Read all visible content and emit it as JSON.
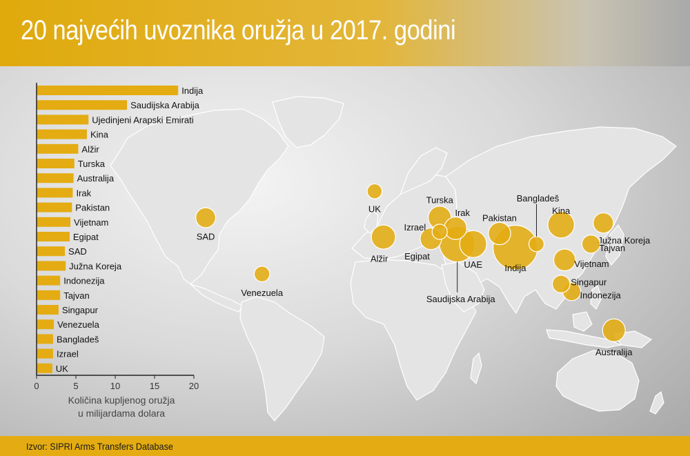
{
  "title": "20 najvećih uvoznika oružja u 2017. godini",
  "source": "Izvor: SIPRI Arms Transfers Database",
  "colors": {
    "accent": "#e4ac12",
    "bubble": "#e4ac12",
    "land": "#e4e4e4",
    "border": "#ffffff"
  },
  "chart_data": [
    {
      "type": "bar",
      "orientation": "horizontal",
      "categories": [
        "Indija",
        "Saudijska Arabija",
        "Ujedinjeni Arapski Emirati",
        "Kina",
        "Alžir",
        "Turska",
        "Australija",
        "Irak",
        "Pakistan",
        "Vijetnam",
        "Egipat",
        "SAD",
        "Južna Koreja",
        "Indonezija",
        "Tajvan",
        "Singapur",
        "Venezuela",
        "Bangladeš",
        "Izrael",
        "UK"
      ],
      "values": [
        18.0,
        11.5,
        6.6,
        6.4,
        5.3,
        4.8,
        4.7,
        4.6,
        4.5,
        4.3,
        4.2,
        3.6,
        3.7,
        3.0,
        3.0,
        2.8,
        2.2,
        2.1,
        2.1,
        2.0
      ],
      "xlim": [
        0,
        20
      ],
      "xticks": [
        "0",
        "5",
        "10",
        "15",
        "20"
      ],
      "xlabel": [
        "Količina kupljenog oružja",
        "u milijardama dolara"
      ],
      "ylabel": ""
    },
    {
      "type": "scatter",
      "description_free": true,
      "points": [
        {
          "name": "Indija",
          "lon": 78,
          "lat": 22,
          "value": 18.0
        },
        {
          "name": "Saudijska Arabija",
          "lon": 45,
          "lat": 24,
          "value": 11.5
        },
        {
          "name": "UAE",
          "lon": 54,
          "lat": 24,
          "value": 6.6
        },
        {
          "name": "Kina",
          "lon": 104,
          "lat": 35,
          "value": 6.4
        },
        {
          "name": "Alžir",
          "lon": 3,
          "lat": 28,
          "value": 5.3
        },
        {
          "name": "Turska",
          "lon": 35,
          "lat": 39,
          "value": 4.8
        },
        {
          "name": "Australija",
          "lon": 134,
          "lat": -25,
          "value": 4.7
        },
        {
          "name": "Irak",
          "lon": 44,
          "lat": 33,
          "value": 4.6
        },
        {
          "name": "Pakistan",
          "lon": 69,
          "lat": 30,
          "value": 4.5
        },
        {
          "name": "Vijetnam",
          "lon": 106,
          "lat": 15,
          "value": 4.3
        },
        {
          "name": "Egipat",
          "lon": 30,
          "lat": 27,
          "value": 4.2
        },
        {
          "name": "SAD",
          "lon": -98,
          "lat": 39,
          "value": 3.6
        },
        {
          "name": "Južna Koreja",
          "lon": 128,
          "lat": 36,
          "value": 3.7
        },
        {
          "name": "Indonezija",
          "lon": 110,
          "lat": -3,
          "value": 3.0
        },
        {
          "name": "Tajvan",
          "lon": 121,
          "lat": 24,
          "value": 3.0
        },
        {
          "name": "Singapur",
          "lon": 104,
          "lat": 1.3,
          "value": 2.8
        },
        {
          "name": "Venezuela",
          "lon": -66,
          "lat": 7,
          "value": 2.2
        },
        {
          "name": "Bangladeš",
          "lon": 90,
          "lat": 24,
          "value": 2.1
        },
        {
          "name": "Izrael",
          "lon": 35,
          "lat": 31,
          "value": 2.1
        },
        {
          "name": "UK",
          "lon": -2,
          "lat": 54,
          "value": 2.0
        }
      ]
    }
  ]
}
